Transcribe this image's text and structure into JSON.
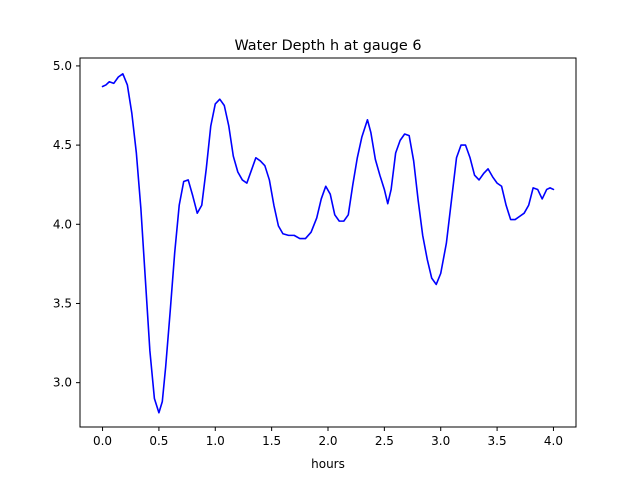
{
  "chart_data": {
    "type": "line",
    "title": "Water Depth h at gauge 6",
    "xlabel": "hours",
    "ylabel": "",
    "xlim": [
      -0.2,
      4.2
    ],
    "ylim": [
      2.72,
      5.05
    ],
    "xticks": [
      0.0,
      0.5,
      1.0,
      1.5,
      2.0,
      2.5,
      3.0,
      3.5,
      4.0
    ],
    "xtick_labels": [
      "0.0",
      "0.5",
      "1.0",
      "1.5",
      "2.0",
      "2.5",
      "3.0",
      "3.5",
      "4.0"
    ],
    "yticks": [
      3.0,
      3.5,
      4.0,
      4.5,
      5.0
    ],
    "ytick_labels": [
      "3.0",
      "3.5",
      "4.0",
      "4.5",
      "5.0"
    ],
    "grid": false,
    "series": [
      {
        "color": "#0000ff",
        "x": [
          0.0,
          0.03,
          0.06,
          0.1,
          0.14,
          0.18,
          0.22,
          0.26,
          0.3,
          0.34,
          0.38,
          0.42,
          0.46,
          0.5,
          0.53,
          0.56,
          0.6,
          0.64,
          0.68,
          0.72,
          0.76,
          0.8,
          0.84,
          0.88,
          0.92,
          0.96,
          1.0,
          1.04,
          1.08,
          1.12,
          1.16,
          1.2,
          1.24,
          1.28,
          1.32,
          1.36,
          1.4,
          1.44,
          1.48,
          1.52,
          1.56,
          1.6,
          1.65,
          1.7,
          1.75,
          1.8,
          1.85,
          1.9,
          1.94,
          1.98,
          2.02,
          2.06,
          2.1,
          2.14,
          2.18,
          2.22,
          2.26,
          2.3,
          2.35,
          2.38,
          2.42,
          2.46,
          2.5,
          2.53,
          2.56,
          2.6,
          2.64,
          2.68,
          2.72,
          2.76,
          2.8,
          2.84,
          2.88,
          2.92,
          2.96,
          3.0,
          3.05,
          3.1,
          3.14,
          3.18,
          3.22,
          3.26,
          3.3,
          3.34,
          3.38,
          3.42,
          3.46,
          3.5,
          3.54,
          3.58,
          3.62,
          3.66,
          3.7,
          3.74,
          3.78,
          3.82,
          3.86,
          3.9,
          3.94,
          3.97,
          4.0
        ],
        "values": [
          4.87,
          4.88,
          4.9,
          4.89,
          4.93,
          4.95,
          4.88,
          4.7,
          4.45,
          4.1,
          3.65,
          3.2,
          2.9,
          2.81,
          2.88,
          3.1,
          3.45,
          3.82,
          4.12,
          4.27,
          4.28,
          4.18,
          4.07,
          4.12,
          4.35,
          4.62,
          4.76,
          4.79,
          4.75,
          4.62,
          4.43,
          4.33,
          4.28,
          4.26,
          4.34,
          4.42,
          4.4,
          4.37,
          4.28,
          4.12,
          3.99,
          3.94,
          3.93,
          3.93,
          3.91,
          3.91,
          3.95,
          4.04,
          4.16,
          4.24,
          4.19,
          4.06,
          4.02,
          4.02,
          4.06,
          4.25,
          4.42,
          4.55,
          4.66,
          4.58,
          4.41,
          4.31,
          4.22,
          4.13,
          4.22,
          4.45,
          4.53,
          4.57,
          4.56,
          4.4,
          4.15,
          3.93,
          3.78,
          3.66,
          3.62,
          3.69,
          3.88,
          4.18,
          4.42,
          4.5,
          4.5,
          4.42,
          4.31,
          4.28,
          4.32,
          4.35,
          4.3,
          4.26,
          4.24,
          4.12,
          4.03,
          4.03,
          4.05,
          4.07,
          4.12,
          4.23,
          4.22,
          4.16,
          4.22,
          4.23,
          4.22
        ]
      }
    ]
  }
}
